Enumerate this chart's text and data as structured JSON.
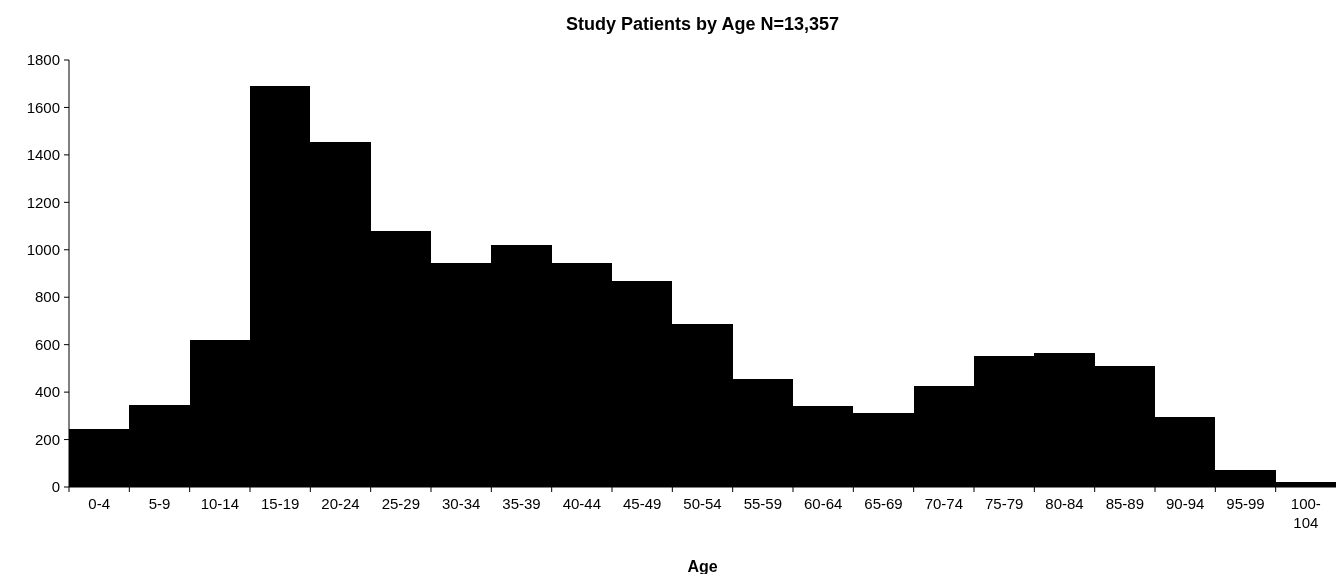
{
  "chart_data": {
    "type": "bar",
    "title": "Study Patients by Age  N=13,357",
    "xlabel": "Age",
    "categories": [
      "0-4",
      "5-9",
      "10-14",
      "15-19",
      "20-24",
      "25-29",
      "30-34",
      "35-39",
      "40-44",
      "45-49",
      "50-54",
      "55-59",
      "60-64",
      "65-69",
      "70-74",
      "75-79",
      "80-84",
      "85-89",
      "90-94",
      "95-99",
      "100-104"
    ],
    "values": [
      244,
      345,
      618,
      1692,
      1456,
      1080,
      946,
      1021,
      946,
      869,
      688,
      455,
      340,
      313,
      427,
      553,
      564,
      508,
      295,
      73,
      19
    ],
    "color": "#000000",
    "ylim": [
      0,
      1800
    ],
    "yticks": [
      0,
      200,
      400,
      600,
      800,
      1000,
      1200,
      1400,
      1600,
      1800
    ],
    "grid": false
  }
}
